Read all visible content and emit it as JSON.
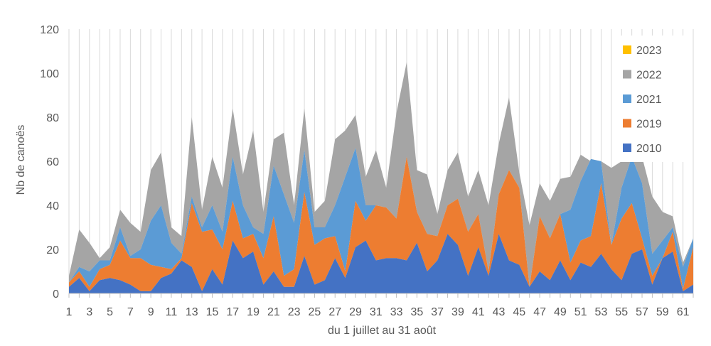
{
  "chart_data": {
    "type": "area",
    "stacked": true,
    "xlabel": "du 1 juillet au 31 août",
    "ylabel": "Nb de canoës",
    "ylim": [
      0,
      120
    ],
    "yticks": [
      0,
      20,
      40,
      60,
      80,
      100,
      120
    ],
    "x": [
      1,
      2,
      3,
      4,
      5,
      6,
      7,
      8,
      9,
      10,
      11,
      12,
      13,
      14,
      15,
      16,
      17,
      18,
      19,
      20,
      21,
      22,
      23,
      24,
      25,
      26,
      27,
      28,
      29,
      30,
      31,
      32,
      33,
      34,
      35,
      36,
      37,
      38,
      39,
      40,
      41,
      42,
      43,
      44,
      45,
      46,
      47,
      48,
      49,
      50,
      51,
      52,
      53,
      54,
      55,
      56,
      57,
      58,
      59,
      60,
      61,
      62
    ],
    "xtick_labels": [
      "1",
      "3",
      "5",
      "7",
      "9",
      "11",
      "13",
      "15",
      "17",
      "19",
      "21",
      "23",
      "25",
      "27",
      "29",
      "31",
      "33",
      "35",
      "37",
      "39",
      "41",
      "43",
      "45",
      "47",
      "49",
      "51",
      "53",
      "55",
      "57",
      "59",
      "61"
    ],
    "grid": "vertical",
    "legend_position": "right",
    "legend_order": [
      "2023",
      "2022",
      "2021",
      "2019",
      "2010"
    ],
    "series": [
      {
        "name": "2010",
        "color": "#4472C4",
        "cumulative": [
          3,
          7,
          1,
          6,
          7,
          6,
          4,
          1,
          1,
          7,
          9,
          15,
          12,
          1,
          11,
          4,
          24,
          16,
          19,
          4,
          10,
          3,
          3,
          17,
          4,
          6,
          16,
          7,
          21,
          24,
          15,
          16,
          16,
          15,
          23,
          10,
          15,
          27,
          22,
          8,
          21,
          8,
          27,
          15,
          13,
          3,
          10,
          6,
          15,
          6,
          14,
          12,
          18,
          11,
          6,
          18,
          20,
          4,
          16,
          19,
          1,
          4
        ]
      },
      {
        "name": "2019",
        "color": "#ED7D31",
        "cumulative": [
          5,
          10,
          3,
          11,
          13,
          24,
          16,
          16,
          13,
          12,
          11,
          16,
          41,
          28,
          29,
          20,
          42,
          25,
          27,
          16,
          35,
          8,
          11,
          46,
          22,
          25,
          26,
          10,
          42,
          33,
          40,
          39,
          34,
          62,
          37,
          27,
          26,
          40,
          43,
          28,
          36,
          10,
          45,
          56,
          48,
          3,
          35,
          25,
          36,
          14,
          24,
          26,
          50,
          22,
          34,
          41,
          25,
          8,
          16,
          28,
          2,
          21
        ]
      },
      {
        "name": "2021",
        "color": "#5B9BD5",
        "cumulative": [
          5,
          12,
          10,
          15,
          15,
          30,
          17,
          20,
          33,
          40,
          23,
          18,
          44,
          30,
          40,
          28,
          62,
          40,
          30,
          27,
          58,
          45,
          32,
          65,
          30,
          30,
          40,
          53,
          66,
          40,
          40,
          39,
          34,
          62,
          37,
          27,
          26,
          40,
          43,
          28,
          36,
          10,
          45,
          56,
          48,
          3,
          35,
          25,
          36,
          38,
          51,
          61,
          60,
          22,
          48,
          62,
          50,
          18,
          24,
          30,
          12,
          25
        ]
      },
      {
        "name": "2022",
        "color": "#A5A5A5",
        "cumulative": [
          8,
          29,
          23,
          16,
          21,
          38,
          32,
          28,
          56,
          64,
          30,
          26,
          80,
          38,
          62,
          48,
          84,
          54,
          74,
          37,
          70,
          73,
          40,
          84,
          37,
          42,
          70,
          74,
          81,
          53,
          65,
          48,
          82,
          105,
          56,
          54,
          36,
          56,
          64,
          44,
          56,
          40,
          68,
          89,
          55,
          31,
          50,
          42,
          52,
          53,
          63,
          60,
          60,
          57,
          60,
          64,
          62,
          44,
          37,
          35,
          14,
          25
        ]
      },
      {
        "name": "2023",
        "color": "#FFC000",
        "cumulative": [
          8,
          29,
          23,
          16,
          21,
          38,
          32,
          28,
          56,
          64,
          30,
          26,
          80,
          38,
          62,
          48,
          84,
          54,
          74,
          37,
          70,
          73,
          40,
          84,
          37,
          42,
          70,
          74,
          81,
          53,
          65,
          48,
          82,
          105,
          56,
          54,
          36,
          56,
          64,
          44,
          56,
          40,
          68,
          89,
          55,
          31,
          50,
          42,
          52,
          53,
          63,
          60,
          60,
          57,
          60,
          64,
          62,
          44,
          37,
          35,
          14,
          25
        ]
      }
    ]
  }
}
